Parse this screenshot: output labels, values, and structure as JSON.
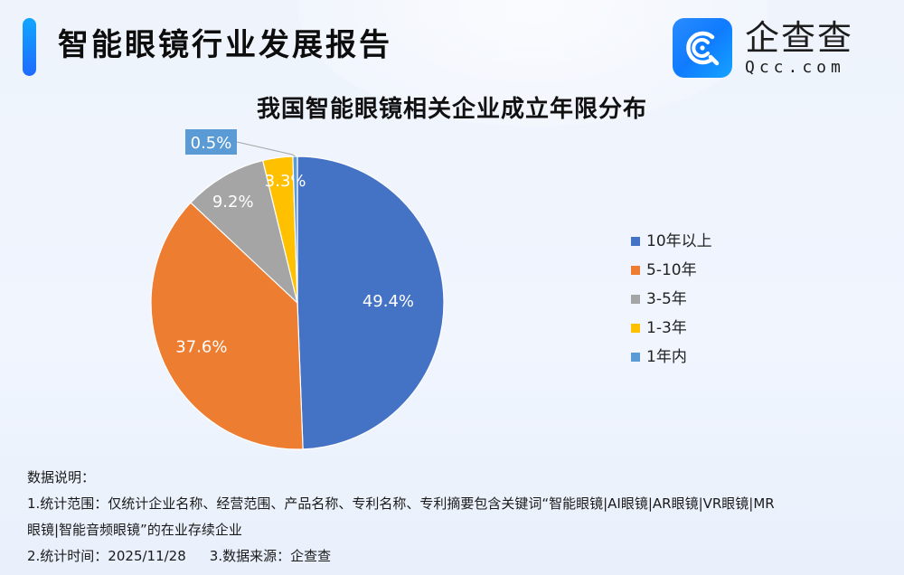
{
  "header": {
    "title": "智能眼镜行业发展报告",
    "logo": {
      "cn": "企查查",
      "en": "Qcc.com",
      "icon": "qcc-logo-icon"
    }
  },
  "chart_data": {
    "type": "pie",
    "title": "我国智能眼镜相关企业成立年限分布",
    "categories": [
      "10年以上",
      "5-10年",
      "3-5年",
      "1-3年",
      "1年内"
    ],
    "values": [
      49.4,
      37.6,
      9.2,
      3.3,
      0.5
    ],
    "labels": [
      "49.4%",
      "37.6%",
      "9.2%",
      "3.3%",
      "0.5%"
    ],
    "colors": [
      "#4472c4",
      "#ed7d31",
      "#a5a5a5",
      "#ffc000",
      "#5b9bd5"
    ],
    "start_angle": "12 o'clock, clockwise",
    "legend_position": "right",
    "unit": "%"
  },
  "legend": {
    "items": [
      {
        "label": "10年以上",
        "color": "#4472c4"
      },
      {
        "label": "5-10年",
        "color": "#ed7d31"
      },
      {
        "label": "3-5年",
        "color": "#a5a5a5"
      },
      {
        "label": "1-3年",
        "color": "#ffc000"
      },
      {
        "label": "1年内",
        "color": "#5b9bd5"
      }
    ]
  },
  "notes": {
    "heading": "数据说明：",
    "line1": "1.统计范围：仅统计企业名称、经营范围、产品名称、专利名称、专利摘要包含关键词“智能眼镜|AI眼镜|AR眼镜|VR眼镜|MR",
    "line2": "眼镜|智能音频眼镜”的在业存续企业",
    "line3_time": "2.统计时间：2025/11/28",
    "line3_source": "3.数据来源：企查查"
  }
}
